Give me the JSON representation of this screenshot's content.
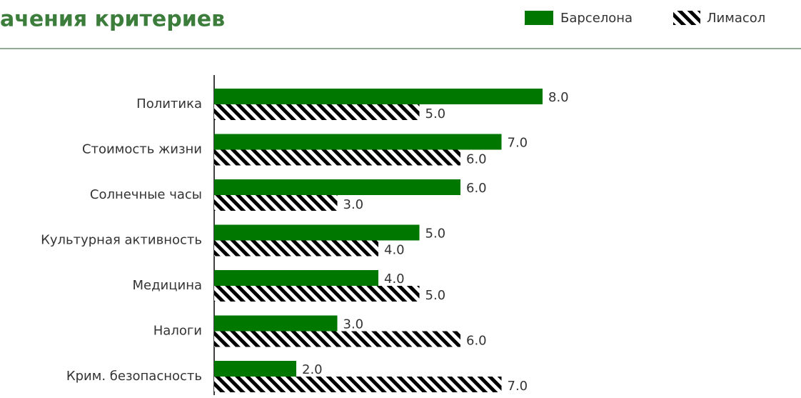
{
  "chart_data": {
    "type": "hbar",
    "title": "ачения критериев",
    "categories": [
      "Политика",
      "Стоимость жизни",
      "Солнечные часы",
      "Культурная активность",
      "Медицина",
      "Налоги",
      "Крим. безопасность"
    ],
    "series": [
      {
        "name": "Барселона",
        "color": "#007800",
        "values": [
          8,
          7,
          6,
          5,
          4,
          3,
          2
        ],
        "value_labels": [
          "8.0",
          "7.0",
          "6.0",
          "5.0",
          "4.0",
          "3.0",
          "2.0"
        ]
      },
      {
        "name": "Лимасол",
        "color": "hatch",
        "values": [
          5,
          6,
          3,
          4,
          5,
          6,
          7
        ],
        "value_labels": [
          "5.0",
          "6.0",
          "3.0",
          "4.0",
          "5.0",
          "6.0",
          "7.0"
        ]
      }
    ],
    "legend": "top-right"
  }
}
